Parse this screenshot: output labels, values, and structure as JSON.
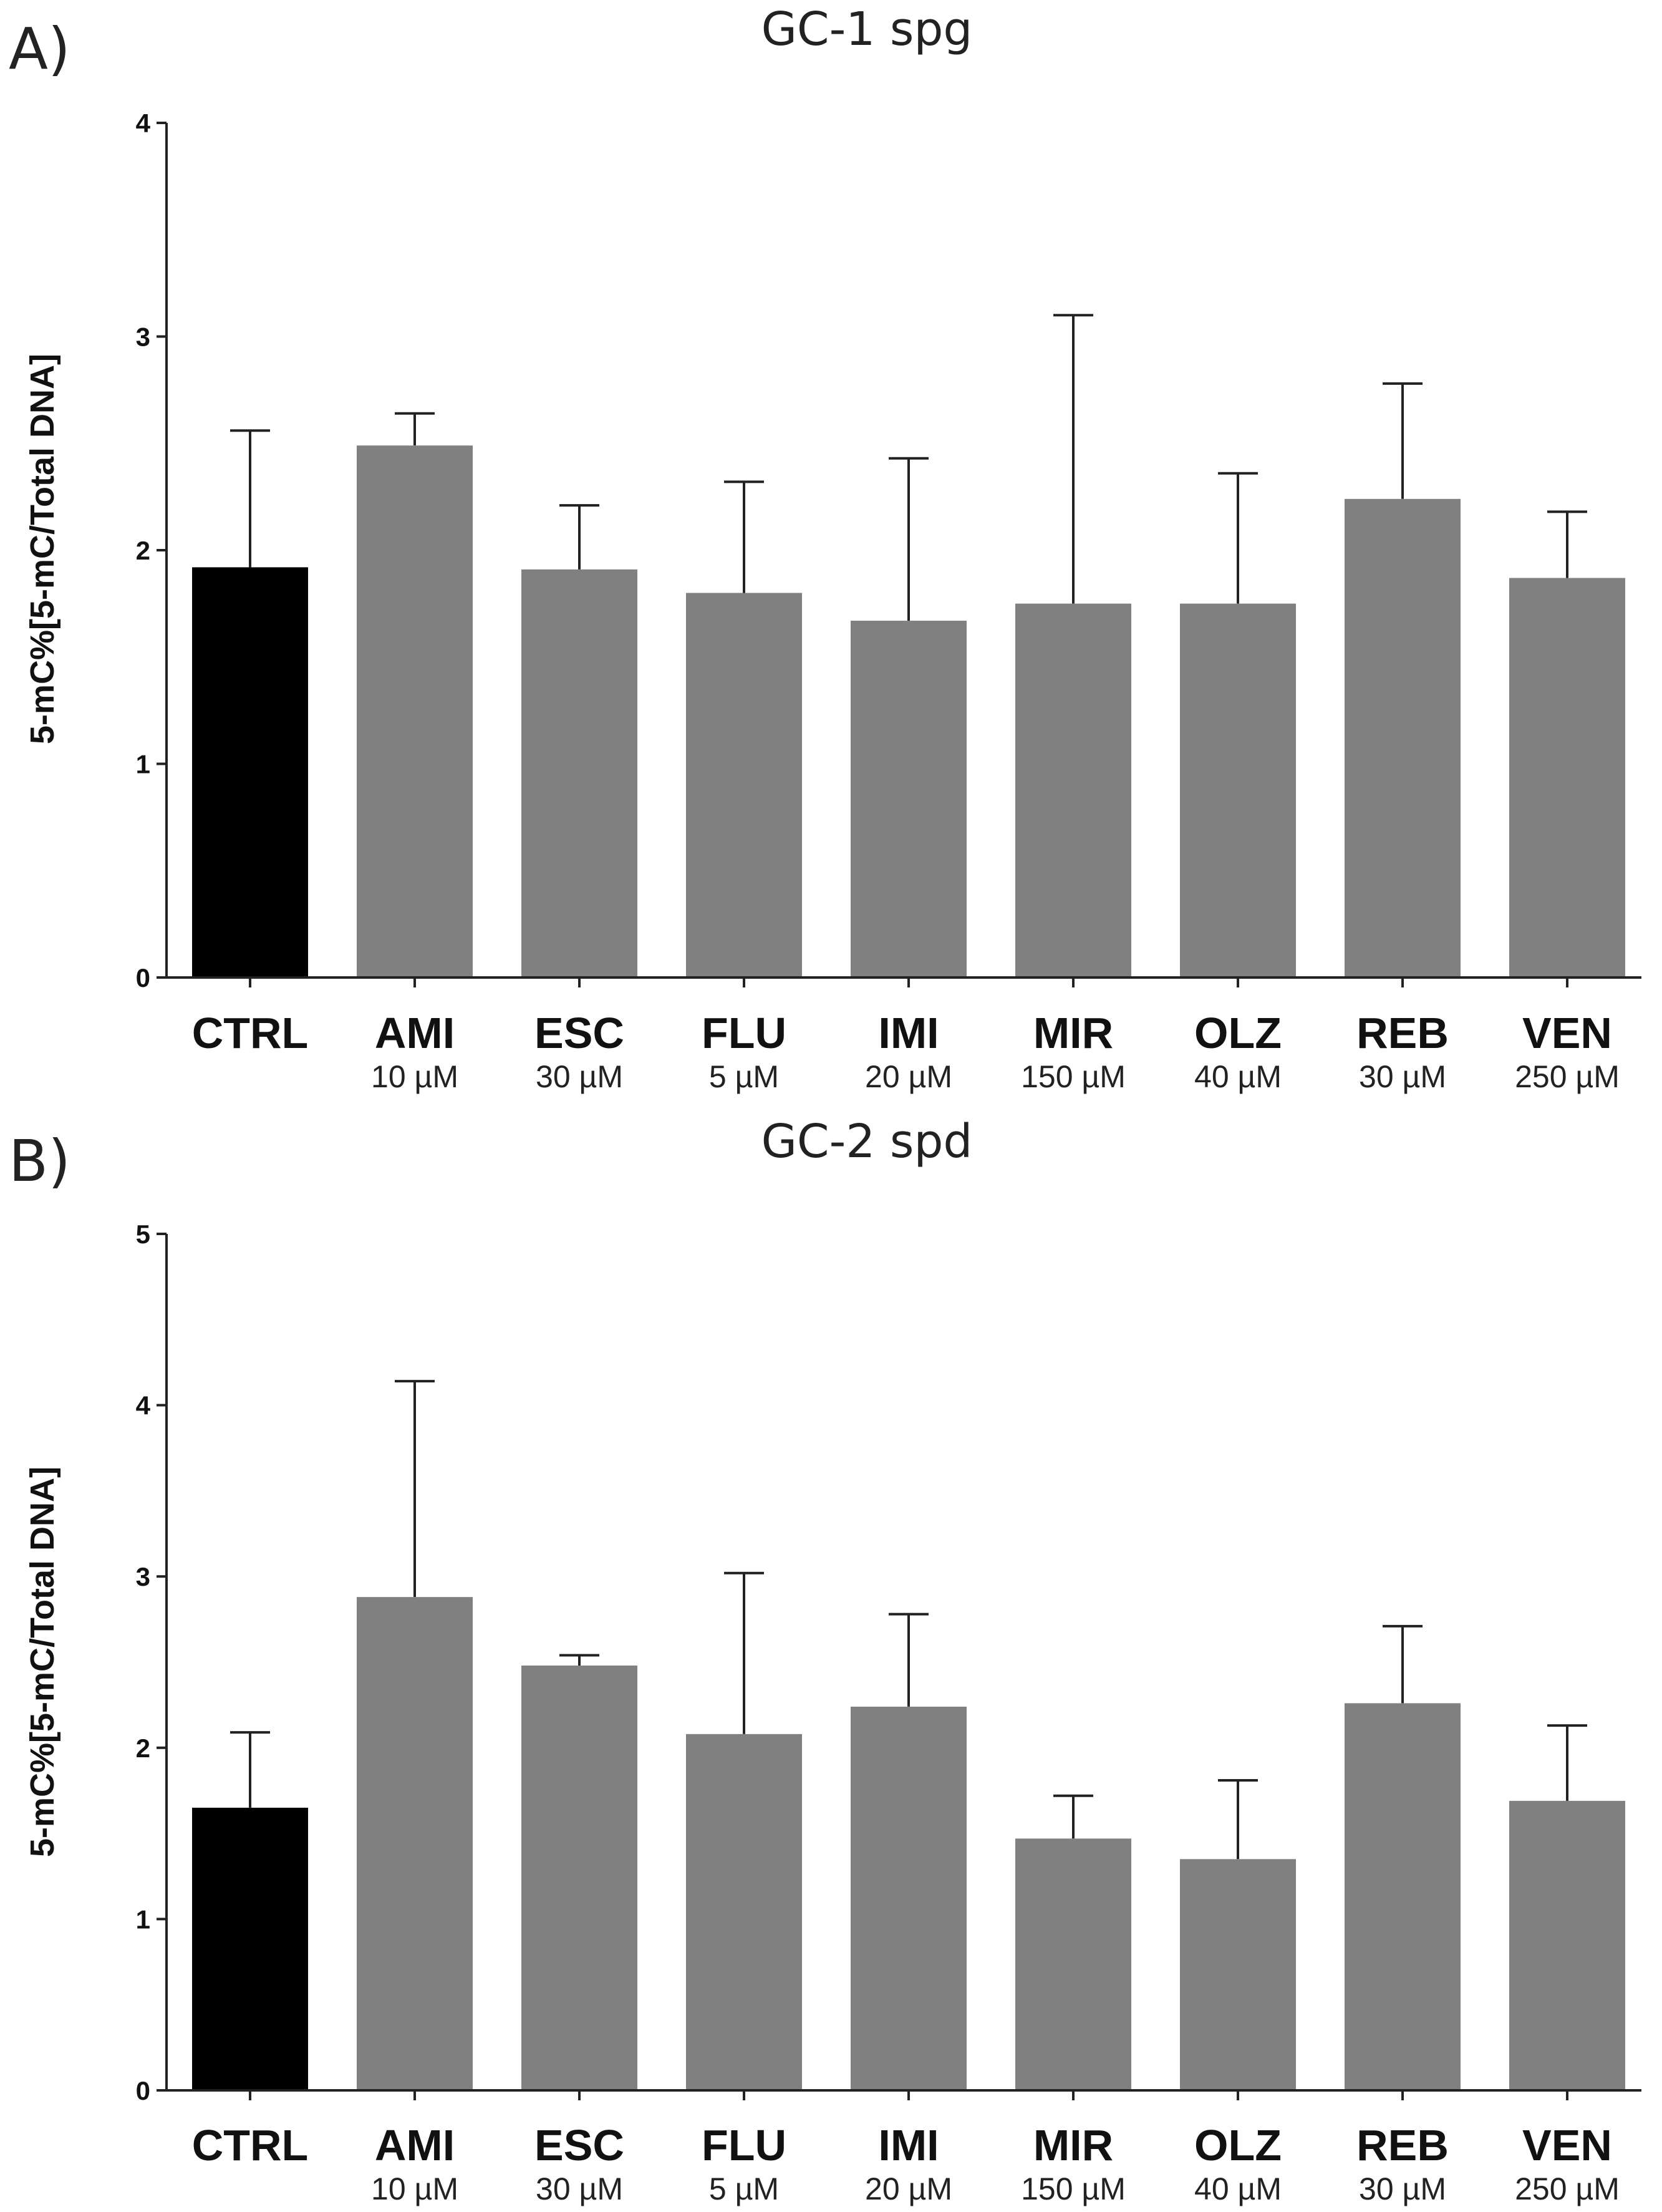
{
  "chart_data": [
    {
      "type": "bar",
      "panel": "A)",
      "title": "GC-1 spg",
      "xlabel": "",
      "ylabel": "5-mC%[5-mC/Total DNA]",
      "ylim": [
        0,
        4
      ],
      "yticks": [
        "0",
        "1",
        "2",
        "3",
        "4"
      ],
      "categories": [
        "CTRL",
        "AMI",
        "ESC",
        "FLU",
        "IMI",
        "MIR",
        "OLZ",
        "REB",
        "VEN"
      ],
      "doses": [
        "",
        "10 µM",
        "30 µM",
        "5 µM",
        "20 µM",
        "150 µM",
        "40 µM",
        "30 µM",
        "250 µM"
      ],
      "values": [
        1.92,
        2.49,
        1.91,
        1.8,
        1.67,
        1.75,
        1.75,
        2.24,
        1.87
      ],
      "error_upper": [
        2.56,
        2.64,
        2.21,
        2.32,
        2.43,
        3.1,
        2.36,
        2.78,
        2.18
      ],
      "colors": [
        "#000000",
        "#808080",
        "#808080",
        "#808080",
        "#808080",
        "#808080",
        "#808080",
        "#808080",
        "#808080"
      ]
    },
    {
      "type": "bar",
      "panel": "B)",
      "title": "GC-2 spd",
      "xlabel": "",
      "ylabel": "5-mC%[5-mC/Total DNA]",
      "ylim": [
        0,
        5
      ],
      "yticks": [
        "0",
        "1",
        "2",
        "3",
        "4",
        "5"
      ],
      "categories": [
        "CTRL",
        "AMI",
        "ESC",
        "FLU",
        "IMI",
        "MIR",
        "OLZ",
        "REB",
        "VEN"
      ],
      "doses": [
        "",
        "10 µM",
        "30 µM",
        "5 µM",
        "20 µM",
        "150 µM",
        "40 µM",
        "30 µM",
        "250 µM"
      ],
      "values": [
        1.65,
        2.88,
        2.48,
        2.08,
        2.24,
        1.47,
        1.35,
        2.26,
        1.69
      ],
      "error_upper": [
        2.09,
        4.14,
        2.54,
        3.02,
        2.78,
        1.72,
        1.81,
        2.71,
        2.13
      ],
      "colors": [
        "#000000",
        "#808080",
        "#808080",
        "#808080",
        "#808080",
        "#808080",
        "#808080",
        "#808080",
        "#808080"
      ]
    }
  ]
}
